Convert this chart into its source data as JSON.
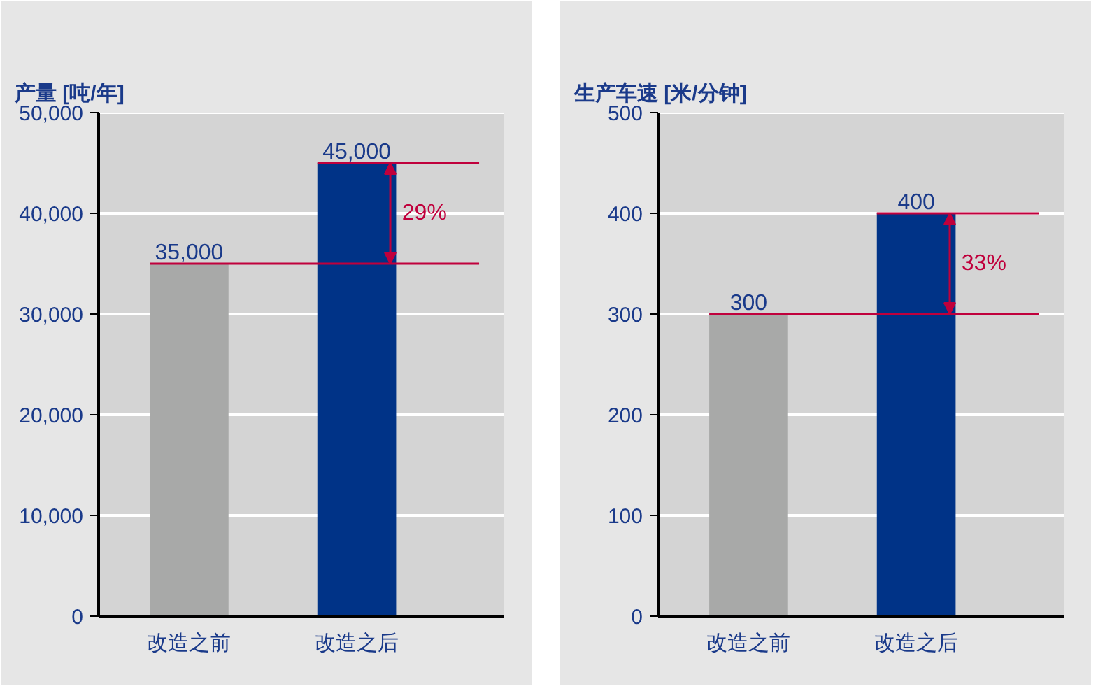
{
  "chart_data": [
    {
      "type": "bar",
      "title": "产量 [吨/年]",
      "categories": [
        "改造之前",
        "改造之后"
      ],
      "colors": [
        "#a8a9a8",
        "#003387"
      ],
      "values": [
        35000,
        45000
      ],
      "ylim": [
        0,
        50000
      ],
      "yticks": [
        {
          "value": 0,
          "label": "0"
        },
        {
          "value": 10000,
          "label": "10,000"
        },
        {
          "value": 20000,
          "label": "20,000"
        },
        {
          "value": 30000,
          "label": "30,000"
        },
        {
          "value": 40000,
          "label": "40,000"
        },
        {
          "value": 50000,
          "label": "50,000"
        }
      ],
      "grid": "y",
      "data_labels": true,
      "value_labels": [
        "35,000",
        "45,000"
      ],
      "ref_lines": [
        {
          "axis": "y",
          "value": 35000,
          "color": "#c0003c"
        },
        {
          "axis": "y",
          "value": 45000,
          "color": "#c0003c"
        }
      ],
      "annotations": [
        {
          "text": "29%",
          "y": 45000
        }
      ]
    },
    {
      "type": "bar",
      "title": "生产车速 [米/分钟]",
      "categories": [
        "改造之前",
        "改造之后"
      ],
      "colors": [
        "#a8a9a8",
        "#003387"
      ],
      "values": [
        300,
        400
      ],
      "ylim": [
        0,
        500
      ],
      "yticks": [
        0,
        100,
        200,
        300,
        400,
        500
      ],
      "grid": "y",
      "data_labels": true,
      "ref_lines": [
        {
          "axis": "y",
          "value": 300,
          "color": "#c0003c"
        },
        {
          "axis": "y",
          "value": 400,
          "color": "#c0003c"
        }
      ],
      "annotations": [
        {
          "text": "33%",
          "y": 400
        }
      ]
    }
  ]
}
